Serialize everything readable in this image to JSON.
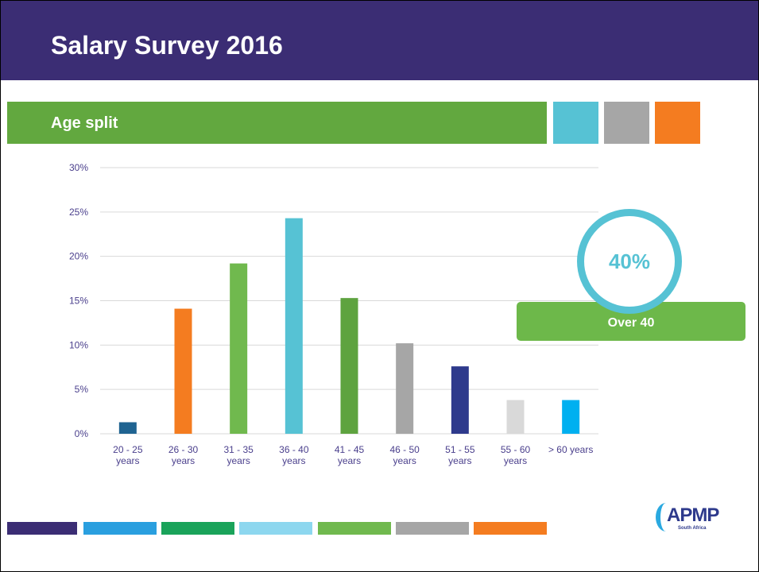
{
  "header": {
    "title": "Salary Survey 2016",
    "section": "Age split"
  },
  "chart_data": {
    "type": "bar",
    "categories": [
      "20 - 25 years",
      "26 - 30 years",
      "31 - 35 years",
      "36 - 40 years",
      "41 - 45 years",
      "46 - 50 years",
      "51 - 55 years",
      "55 - 60 years",
      "> 60 years"
    ],
    "values": [
      1.3,
      14.1,
      19.2,
      24.3,
      15.3,
      10.2,
      7.6,
      3.8,
      3.8
    ],
    "colors": [
      "#1f6391",
      "#f47c20",
      "#70b94e",
      "#56c2d4",
      "#5ea33f",
      "#a6a6a6",
      "#2e3a8c",
      "#d9d9d9",
      "#00b0f0"
    ],
    "ylim": [
      0,
      30
    ],
    "yticks": [
      {
        "value": 0,
        "label": "0%"
      },
      {
        "value": 5,
        "label": "5%"
      },
      {
        "value": 10,
        "label": "10%"
      },
      {
        "value": 15,
        "label": "15%"
      },
      {
        "value": 20,
        "label": "20%"
      },
      {
        "value": 25,
        "label": "25%"
      },
      {
        "value": 30,
        "label": "30%"
      }
    ],
    "grid": true
  },
  "callout": {
    "value": "40%",
    "label": "Over 40"
  },
  "logo": {
    "name": "APMP",
    "tagline": "South Africa"
  }
}
